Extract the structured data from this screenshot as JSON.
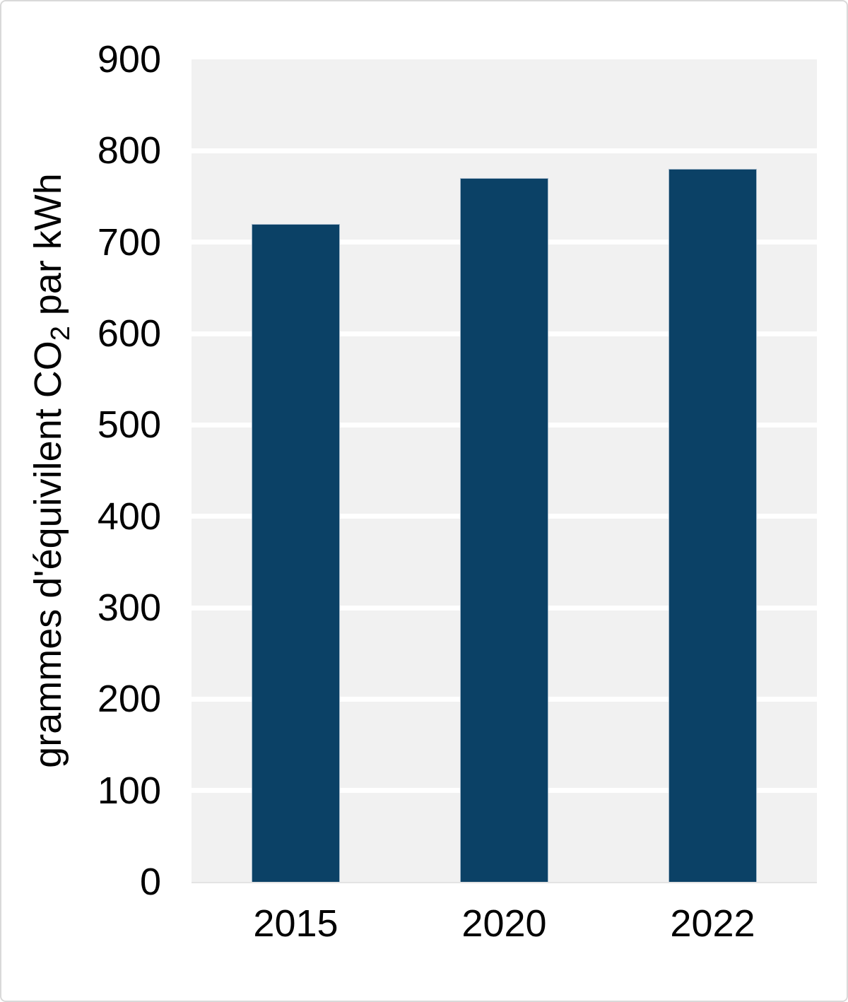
{
  "chart_data": {
    "type": "bar",
    "title": "",
    "categories": [
      "2015",
      "2020",
      "2022"
    ],
    "values": [
      720,
      770,
      780
    ],
    "xlabel": "",
    "ylabel": "grammes d'équivilent CO₂ par kWh",
    "ylabel_parts": {
      "prefix": "grammes d'équivilent CO",
      "sub": "2",
      "suffix": " par kWh"
    },
    "ylim": [
      0,
      900
    ],
    "yticks": [
      0,
      100,
      200,
      300,
      400,
      500,
      600,
      700,
      800,
      900
    ],
    "grid": "horizontal",
    "legend_position": "none",
    "colors": {
      "bar_fill": "#0b4166",
      "bar_edge": "#a3b8ca",
      "plot_background": "#f1f1f1",
      "gridline": "#ffffff",
      "baseline": "#e3e3e3",
      "text": "#000000",
      "figure_border": "#d9d9d9",
      "figure_background": "#ffffff"
    }
  }
}
